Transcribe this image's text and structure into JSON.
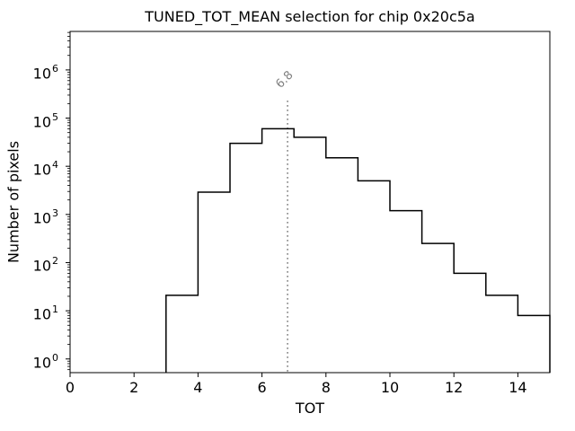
{
  "chart_data": {
    "type": "bar",
    "subtype": "step-histogram",
    "title": "TUNED_TOT_MEAN selection for chip 0x20c5a",
    "xlabel": "TOT",
    "ylabel": "Number of pixels",
    "xlim": [
      0,
      15
    ],
    "ylim": [
      0.52,
      6300000
    ],
    "yscale": "log",
    "grid": false,
    "xticks": [
      0,
      2,
      4,
      6,
      8,
      10,
      12,
      14
    ],
    "ytick_exponents": [
      0,
      1,
      2,
      3,
      4,
      5,
      6
    ],
    "histogram": {
      "bin_edges": [
        3,
        4,
        5,
        6,
        7,
        8,
        9,
        10,
        11,
        12,
        13,
        14,
        15
      ],
      "values": [
        21,
        2900,
        30000,
        60000,
        40000,
        15000,
        5000,
        1200,
        250,
        60,
        21,
        8
      ]
    },
    "vline": {
      "x": 6.8,
      "label": "6.8",
      "style": "dotted"
    },
    "colors": {
      "histogram_line": "#000000",
      "vline": "#808080",
      "annotation_text": "#808080",
      "axes": "#000000",
      "background": "#ffffff"
    }
  }
}
